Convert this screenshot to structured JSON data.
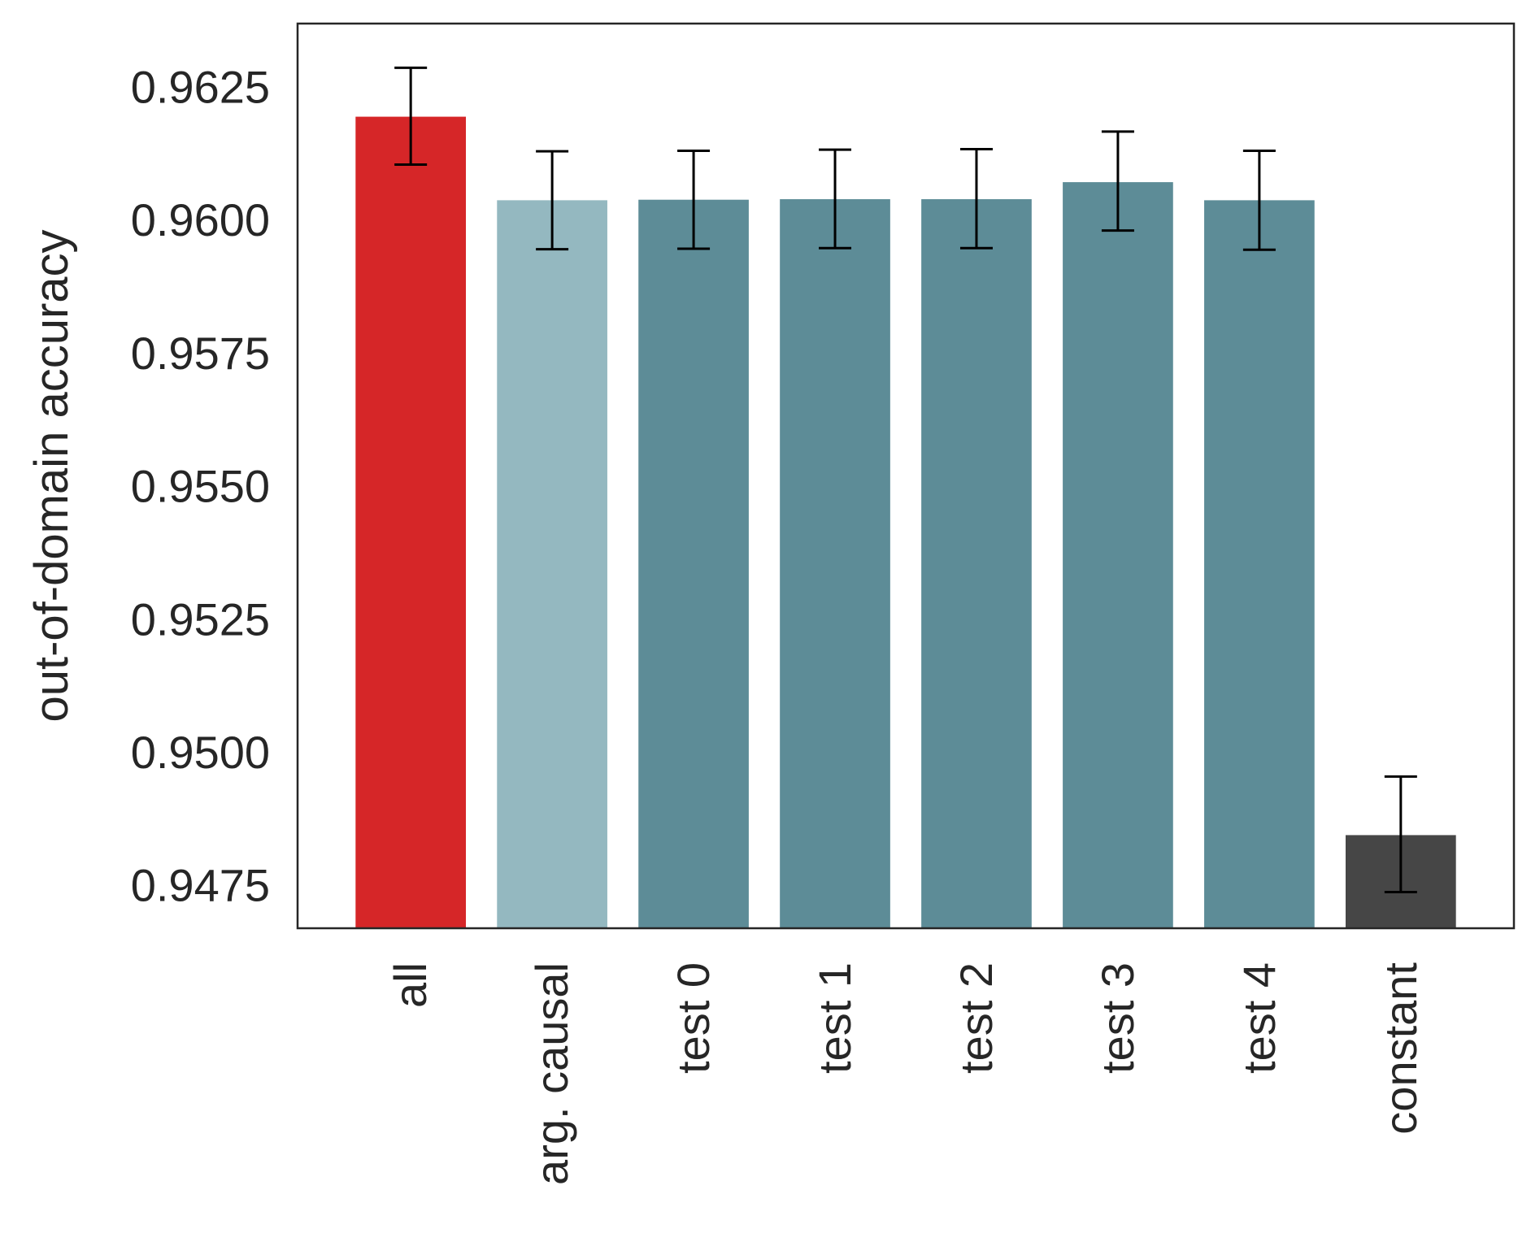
{
  "chart_data": {
    "type": "bar",
    "title": "",
    "xlabel": "",
    "ylabel": "out-of-domain accuracy",
    "categories": [
      "all",
      "arg. causal",
      "test 0",
      "test 1",
      "test 2",
      "test 3",
      "test 4",
      "constant"
    ],
    "values": [
      0.96195,
      0.96038,
      0.96039,
      0.9604,
      0.9604,
      0.96072,
      0.96038,
      0.94845
    ],
    "error_low": [
      0.96105,
      0.95946,
      0.95947,
      0.95948,
      0.95948,
      0.95981,
      0.95945,
      0.94738
    ],
    "error_high": [
      0.96287,
      0.9613,
      0.96131,
      0.96133,
      0.96134,
      0.96167,
      0.96131,
      0.94955
    ],
    "colors": [
      "#d62628",
      "#94b8c0",
      "#5d8c97",
      "#5d8c97",
      "#5d8c97",
      "#5d8c97",
      "#5d8c97",
      "#464646"
    ],
    "ylim": [
      0.9467,
      0.9637
    ],
    "yticks": [
      0.9475,
      0.95,
      0.9525,
      0.955,
      0.9575,
      0.96,
      0.9625
    ],
    "ytick_labels": [
      "0.9475",
      "0.9500",
      "0.9525",
      "0.9550",
      "0.9575",
      "0.9600",
      "0.9625"
    ],
    "grid": false,
    "legend": "none"
  }
}
